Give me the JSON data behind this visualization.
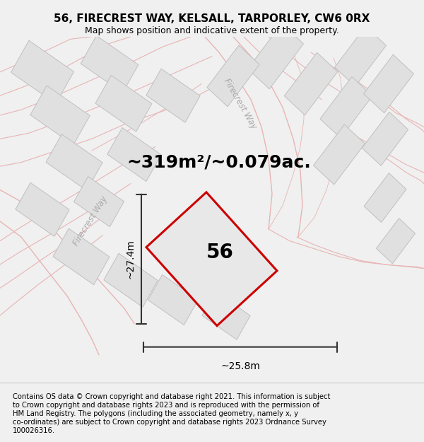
{
  "title": "56, FIRECREST WAY, KELSALL, TARPORLEY, CW6 0RX",
  "subtitle": "Map shows position and indicative extent of the property.",
  "area_text": "~319m²/~0.079ac.",
  "number_label": "56",
  "width_label": "~25.8m",
  "height_label": "~27.4m",
  "footer_lines": [
    "Contains OS data © Crown copyright and database right 2021. This information is subject",
    "to Crown copyright and database rights 2023 and is reproduced with the permission of",
    "HM Land Registry. The polygons (including the associated geometry, namely x, y",
    "co-ordinates) are subject to Crown copyright and database rights 2023 Ordnance Survey",
    "100026316."
  ],
  "bg_color": "#f0f0f0",
  "map_bg": "#ffffff",
  "road_line_color": "#e8b4b4",
  "plot_fill": "#e0e0e0",
  "plot_edge": "#c0c0c0",
  "highlight_fill": "#e8e8e8",
  "highlight_edge": "#cc0000",
  "dim_color": "#333333",
  "text_color": "#000000",
  "road_label_color": "#aaaaaa",
  "title_fontsize": 11,
  "subtitle_fontsize": 9,
  "area_fontsize": 18,
  "number_fontsize": 20,
  "dim_fontsize": 10,
  "footer_fontsize": 7.2,
  "road_label_fontsize": 8.5
}
